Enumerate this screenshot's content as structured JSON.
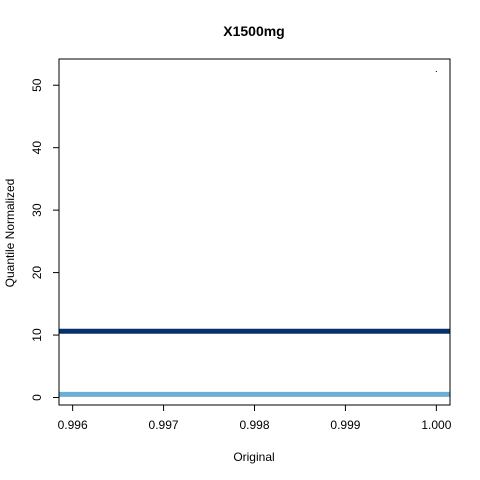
{
  "chart_data": {
    "type": "line",
    "title": "X1500mg",
    "xlabel": "Original",
    "ylabel": "Quantile Normalized",
    "xlim": [
      0.99585,
      1.00015
    ],
    "ylim": [
      -1.2,
      54.2
    ],
    "x_ticks": [
      "0.996",
      "0.997",
      "0.998",
      "0.999",
      "1.000"
    ],
    "y_ticks": [
      "0",
      "10",
      "20",
      "30",
      "40",
      "50"
    ],
    "grid": false,
    "series": [
      {
        "x": [
          0.99585,
          1.00015
        ],
        "y": [
          10.6,
          10.6
        ],
        "color": "#08306b",
        "role": "dark horizontal line"
      },
      {
        "x": [
          0.99585,
          1.00015
        ],
        "y": [
          0.5,
          0.5
        ],
        "color": "#6baed6",
        "role": "light horizontal line"
      }
    ],
    "points": [
      {
        "x": 1.0,
        "y": 52.2,
        "color": "#000000"
      }
    ]
  }
}
